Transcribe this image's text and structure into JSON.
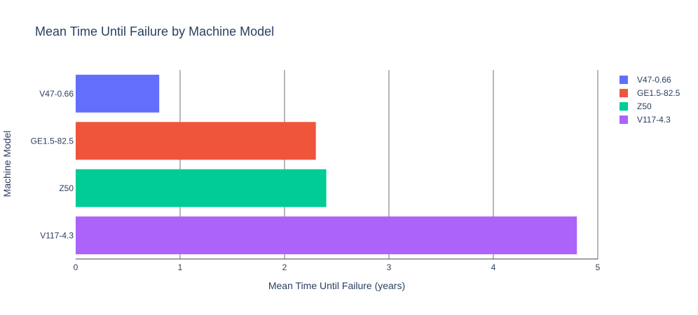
{
  "chart_data": {
    "type": "bar",
    "orientation": "horizontal",
    "title": "Mean Time Until Failure by Machine Model",
    "xlabel": "Mean Time Until Failure (years)",
    "ylabel": "Machine Model",
    "xlim": [
      0,
      5
    ],
    "xticks": [
      "0",
      "1",
      "2",
      "3",
      "4",
      "5"
    ],
    "grid": "vertical",
    "legend_position": "top-right",
    "categories": [
      "V47-0.66",
      "GE1.5-82.5",
      "Z50",
      "V117-4.3"
    ],
    "series": [
      {
        "name": "V47-0.66",
        "category": "V47-0.66",
        "value": 0.8,
        "color": "#636efa"
      },
      {
        "name": "GE1.5-82.5",
        "category": "GE1.5-82.5",
        "value": 2.3,
        "color": "#ef553b"
      },
      {
        "name": "Z50",
        "category": "Z50",
        "value": 2.4,
        "color": "#00cc96"
      },
      {
        "name": "V117-4.3",
        "category": "V117-4.3",
        "value": 4.8,
        "color": "#ab63fa"
      }
    ]
  }
}
